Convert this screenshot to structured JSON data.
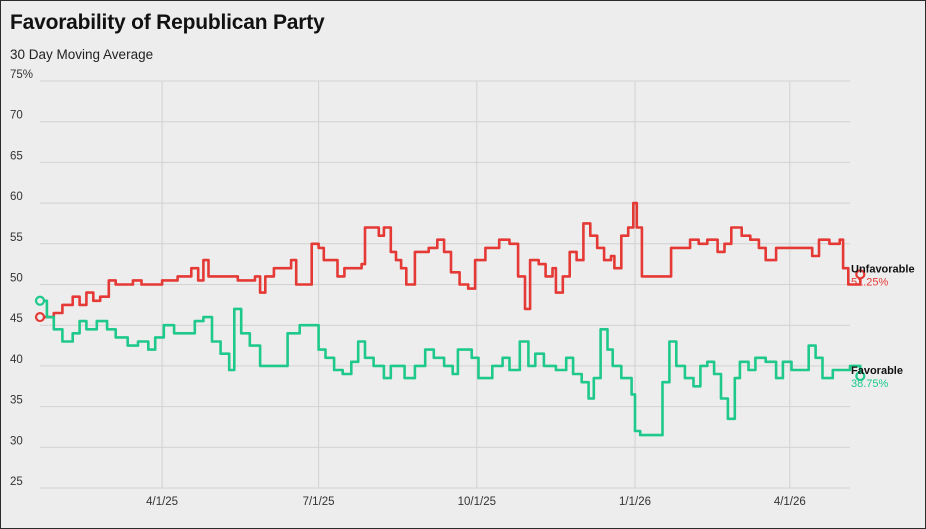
{
  "header": {
    "title": "Favorability of Republican Party",
    "subtitle": "30 Day Moving Average"
  },
  "chart_data": {
    "type": "line",
    "title": "Favorability of Republican Party",
    "subtitle": "30 Day Moving Average",
    "xlabel": "",
    "ylabel": "",
    "ylim": [
      25,
      75
    ],
    "y_ticks": [
      "75%",
      "70",
      "65",
      "60",
      "55",
      "50",
      "45",
      "40",
      "35",
      "30",
      "25"
    ],
    "x_ticks": [
      "4/1/25",
      "7/1/25",
      "10/1/25",
      "1/1/26",
      "4/1/26"
    ],
    "x_range": [
      "2025-01-20",
      "2026-05-06"
    ],
    "grid": true,
    "legend": "end-labels",
    "series": [
      {
        "name": "Unfavorable",
        "color": "#e53935",
        "end_label": "51.25%",
        "points": [
          [
            "2025-01-20",
            46
          ],
          [
            "2025-01-28",
            46.5
          ],
          [
            "2025-02-02",
            47.5
          ],
          [
            "2025-02-08",
            48.5
          ],
          [
            "2025-02-12",
            47.5
          ],
          [
            "2025-02-16",
            49
          ],
          [
            "2025-02-20",
            48
          ],
          [
            "2025-02-24",
            48.5
          ],
          [
            "2025-03-01",
            50.5
          ],
          [
            "2025-03-05",
            50
          ],
          [
            "2025-03-10",
            50
          ],
          [
            "2025-03-15",
            50.5
          ],
          [
            "2025-03-20",
            50
          ],
          [
            "2025-04-01",
            50.5
          ],
          [
            "2025-04-10",
            51
          ],
          [
            "2025-04-18",
            52
          ],
          [
            "2025-04-22",
            50.5
          ],
          [
            "2025-04-25",
            53
          ],
          [
            "2025-04-28",
            51
          ],
          [
            "2025-05-05",
            51
          ],
          [
            "2025-05-15",
            50.5
          ],
          [
            "2025-05-25",
            51
          ],
          [
            "2025-05-28",
            49
          ],
          [
            "2025-05-31",
            51
          ],
          [
            "2025-06-05",
            52
          ],
          [
            "2025-06-12",
            52
          ],
          [
            "2025-06-15",
            53
          ],
          [
            "2025-06-18",
            50
          ],
          [
            "2025-06-25",
            50
          ],
          [
            "2025-06-27",
            55
          ],
          [
            "2025-07-01",
            54.5
          ],
          [
            "2025-07-04",
            53
          ],
          [
            "2025-07-08",
            53
          ],
          [
            "2025-07-12",
            51
          ],
          [
            "2025-07-16",
            52
          ],
          [
            "2025-07-20",
            52
          ],
          [
            "2025-07-26",
            52.5
          ],
          [
            "2025-07-28",
            57
          ],
          [
            "2025-08-02",
            57
          ],
          [
            "2025-08-05",
            56
          ],
          [
            "2025-08-08",
            57
          ],
          [
            "2025-08-12",
            54
          ],
          [
            "2025-08-15",
            53
          ],
          [
            "2025-08-18",
            52
          ],
          [
            "2025-08-21",
            50
          ],
          [
            "2025-08-24",
            50
          ],
          [
            "2025-08-26",
            54
          ],
          [
            "2025-09-03",
            54.5
          ],
          [
            "2025-09-08",
            55.5
          ],
          [
            "2025-09-12",
            54
          ],
          [
            "2025-09-16",
            51.5
          ],
          [
            "2025-09-21",
            50
          ],
          [
            "2025-09-26",
            49.5
          ],
          [
            "2025-09-30",
            53
          ],
          [
            "2025-10-06",
            54.5
          ],
          [
            "2025-10-14",
            55.5
          ],
          [
            "2025-10-20",
            55
          ],
          [
            "2025-10-25",
            51
          ],
          [
            "2025-10-29",
            47
          ],
          [
            "2025-11-01",
            53
          ],
          [
            "2025-11-06",
            52.5
          ],
          [
            "2025-11-10",
            51
          ],
          [
            "2025-11-14",
            52
          ],
          [
            "2025-11-16",
            49
          ],
          [
            "2025-11-20",
            51
          ],
          [
            "2025-11-24",
            54
          ],
          [
            "2025-11-28",
            53
          ],
          [
            "2025-12-02",
            57.5
          ],
          [
            "2025-12-06",
            56
          ],
          [
            "2025-12-10",
            54.5
          ],
          [
            "2025-12-14",
            53
          ],
          [
            "2025-12-18",
            53.5
          ],
          [
            "2025-12-20",
            52
          ],
          [
            "2025-12-24",
            56
          ],
          [
            "2025-12-28",
            57
          ],
          [
            "2025-12-31",
            60
          ],
          [
            "2026-01-02",
            57
          ],
          [
            "2026-01-05",
            51
          ],
          [
            "2026-01-20",
            51
          ],
          [
            "2026-01-22",
            54.5
          ],
          [
            "2026-01-28",
            54.5
          ],
          [
            "2026-02-02",
            55.5
          ],
          [
            "2026-02-07",
            55
          ],
          [
            "2026-02-12",
            55.5
          ],
          [
            "2026-02-18",
            54
          ],
          [
            "2026-02-22",
            55
          ],
          [
            "2026-02-26",
            57
          ],
          [
            "2026-03-04",
            56
          ],
          [
            "2026-03-09",
            55.5
          ],
          [
            "2026-03-14",
            54.5
          ],
          [
            "2026-03-18",
            53
          ],
          [
            "2026-03-24",
            54.5
          ],
          [
            "2026-04-10",
            54.5
          ],
          [
            "2026-04-14",
            53.5
          ],
          [
            "2026-04-18",
            55.5
          ],
          [
            "2026-04-24",
            55
          ],
          [
            "2026-04-30",
            55.5
          ],
          [
            "2026-05-02",
            52
          ],
          [
            "2026-05-05",
            50
          ],
          [
            "2026-05-10",
            50
          ],
          [
            "2026-05-12",
            51.25
          ]
        ]
      },
      {
        "name": "Favorable",
        "color": "#1ec98b",
        "end_label": "38.75%",
        "points": [
          [
            "2025-01-20",
            48
          ],
          [
            "2025-01-24",
            46
          ],
          [
            "2025-01-28",
            44.5
          ],
          [
            "2025-02-02",
            43
          ],
          [
            "2025-02-08",
            44
          ],
          [
            "2025-02-12",
            45.5
          ],
          [
            "2025-02-16",
            44.5
          ],
          [
            "2025-02-22",
            45.5
          ],
          [
            "2025-02-28",
            44.5
          ],
          [
            "2025-03-05",
            43.5
          ],
          [
            "2025-03-12",
            42.5
          ],
          [
            "2025-03-18",
            43
          ],
          [
            "2025-03-24",
            42
          ],
          [
            "2025-03-28",
            43.5
          ],
          [
            "2025-04-02",
            45
          ],
          [
            "2025-04-08",
            44
          ],
          [
            "2025-04-16",
            44
          ],
          [
            "2025-04-20",
            45.5
          ],
          [
            "2025-04-25",
            46
          ],
          [
            "2025-04-30",
            43
          ],
          [
            "2025-05-05",
            41.5
          ],
          [
            "2025-05-10",
            39.5
          ],
          [
            "2025-05-13",
            47
          ],
          [
            "2025-05-17",
            44
          ],
          [
            "2025-05-22",
            42.5
          ],
          [
            "2025-05-28",
            40
          ],
          [
            "2025-06-10",
            40
          ],
          [
            "2025-06-13",
            44
          ],
          [
            "2025-06-20",
            45
          ],
          [
            "2025-06-25",
            45
          ],
          [
            "2025-07-01",
            42
          ],
          [
            "2025-07-05",
            41
          ],
          [
            "2025-07-10",
            39.5
          ],
          [
            "2025-07-15",
            39
          ],
          [
            "2025-07-20",
            40.5
          ],
          [
            "2025-07-24",
            43
          ],
          [
            "2025-07-28",
            41
          ],
          [
            "2025-08-02",
            40
          ],
          [
            "2025-08-08",
            38.5
          ],
          [
            "2025-08-12",
            40
          ],
          [
            "2025-08-20",
            38.5
          ],
          [
            "2025-08-26",
            40
          ],
          [
            "2025-09-01",
            42
          ],
          [
            "2025-09-06",
            41
          ],
          [
            "2025-09-12",
            40
          ],
          [
            "2025-09-17",
            39
          ],
          [
            "2025-09-20",
            42
          ],
          [
            "2025-09-28",
            41
          ],
          [
            "2025-10-02",
            38.5
          ],
          [
            "2025-10-10",
            40
          ],
          [
            "2025-10-16",
            41
          ],
          [
            "2025-10-20",
            39.5
          ],
          [
            "2025-10-26",
            43
          ],
          [
            "2025-10-31",
            40
          ],
          [
            "2025-11-04",
            41.5
          ],
          [
            "2025-11-09",
            40
          ],
          [
            "2025-11-16",
            39.5
          ],
          [
            "2025-11-22",
            41
          ],
          [
            "2025-11-26",
            39
          ],
          [
            "2025-12-01",
            38
          ],
          [
            "2025-12-05",
            36
          ],
          [
            "2025-12-08",
            38.5
          ],
          [
            "2025-12-12",
            44.5
          ],
          [
            "2025-12-16",
            42
          ],
          [
            "2025-12-19",
            40
          ],
          [
            "2025-12-24",
            38.5
          ],
          [
            "2025-12-30",
            36.5
          ],
          [
            "2026-01-01",
            32
          ],
          [
            "2026-01-04",
            31.5
          ],
          [
            "2026-01-14",
            31.5
          ],
          [
            "2026-01-17",
            38
          ],
          [
            "2026-01-21",
            43
          ],
          [
            "2026-01-25",
            40
          ],
          [
            "2026-01-30",
            38.5
          ],
          [
            "2026-02-04",
            37.5
          ],
          [
            "2026-02-08",
            40
          ],
          [
            "2026-02-12",
            40.5
          ],
          [
            "2026-02-16",
            39
          ],
          [
            "2026-02-20",
            36
          ],
          [
            "2026-02-24",
            33.5
          ],
          [
            "2026-02-28",
            38.5
          ],
          [
            "2026-03-03",
            40.5
          ],
          [
            "2026-03-08",
            39.5
          ],
          [
            "2026-03-12",
            41
          ],
          [
            "2026-03-18",
            40.5
          ],
          [
            "2026-03-24",
            38.5
          ],
          [
            "2026-03-28",
            40.5
          ],
          [
            "2026-04-02",
            39.5
          ],
          [
            "2026-04-08",
            39.5
          ],
          [
            "2026-04-12",
            42.5
          ],
          [
            "2026-04-16",
            41
          ],
          [
            "2026-04-20",
            38.5
          ],
          [
            "2026-04-26",
            39.5
          ],
          [
            "2026-05-02",
            39.5
          ],
          [
            "2026-05-06",
            40
          ],
          [
            "2026-05-12",
            38.75
          ]
        ]
      }
    ]
  }
}
